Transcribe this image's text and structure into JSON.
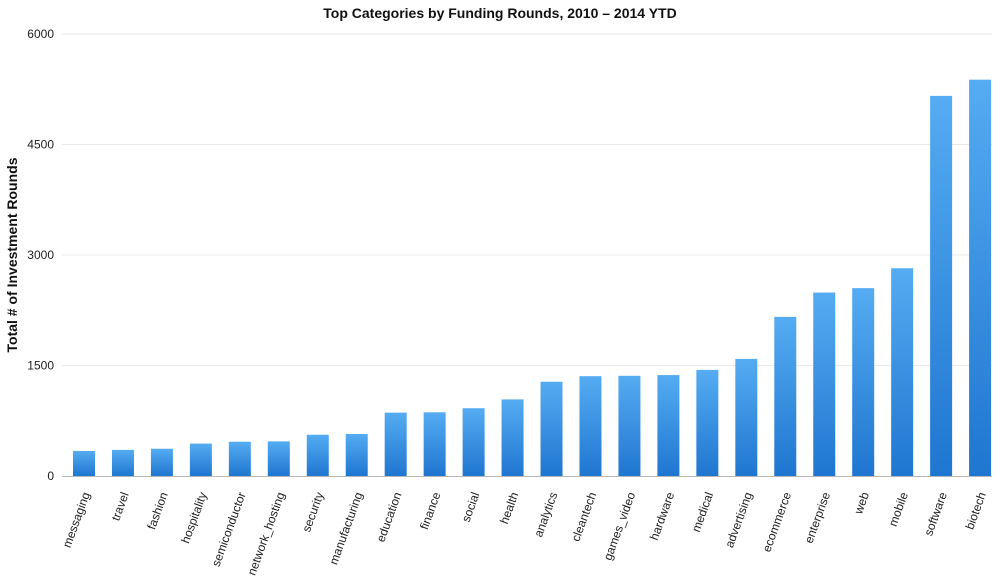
{
  "chart_data": {
    "type": "bar",
    "title": "Top Categories by Funding Rounds, 2010 – 2014 YTD",
    "xlabel": "",
    "ylabel": "Total # of Investment Rounds",
    "ylim": [
      0,
      6000
    ],
    "yticks": [
      0,
      1500,
      3000,
      4500,
      6000
    ],
    "grid": true,
    "legend": "none",
    "bar_color_top": "#55acf2",
    "bar_color_bottom": "#1f76d0",
    "categories": [
      "messaging",
      "travel",
      "fashion",
      "hospitality",
      "semiconductor",
      "network_hosting",
      "security",
      "manufacturing",
      "education",
      "finance",
      "social",
      "health",
      "analytics",
      "cleantech",
      "games_video",
      "hardware",
      "medical",
      "advertising",
      "ecommerce",
      "enterprise",
      "web",
      "mobile",
      "software",
      "biotech"
    ],
    "values": [
      340,
      355,
      370,
      440,
      465,
      470,
      560,
      570,
      860,
      865,
      920,
      1040,
      1280,
      1355,
      1360,
      1370,
      1440,
      1590,
      2160,
      2490,
      2550,
      2820,
      5160,
      5380
    ]
  }
}
